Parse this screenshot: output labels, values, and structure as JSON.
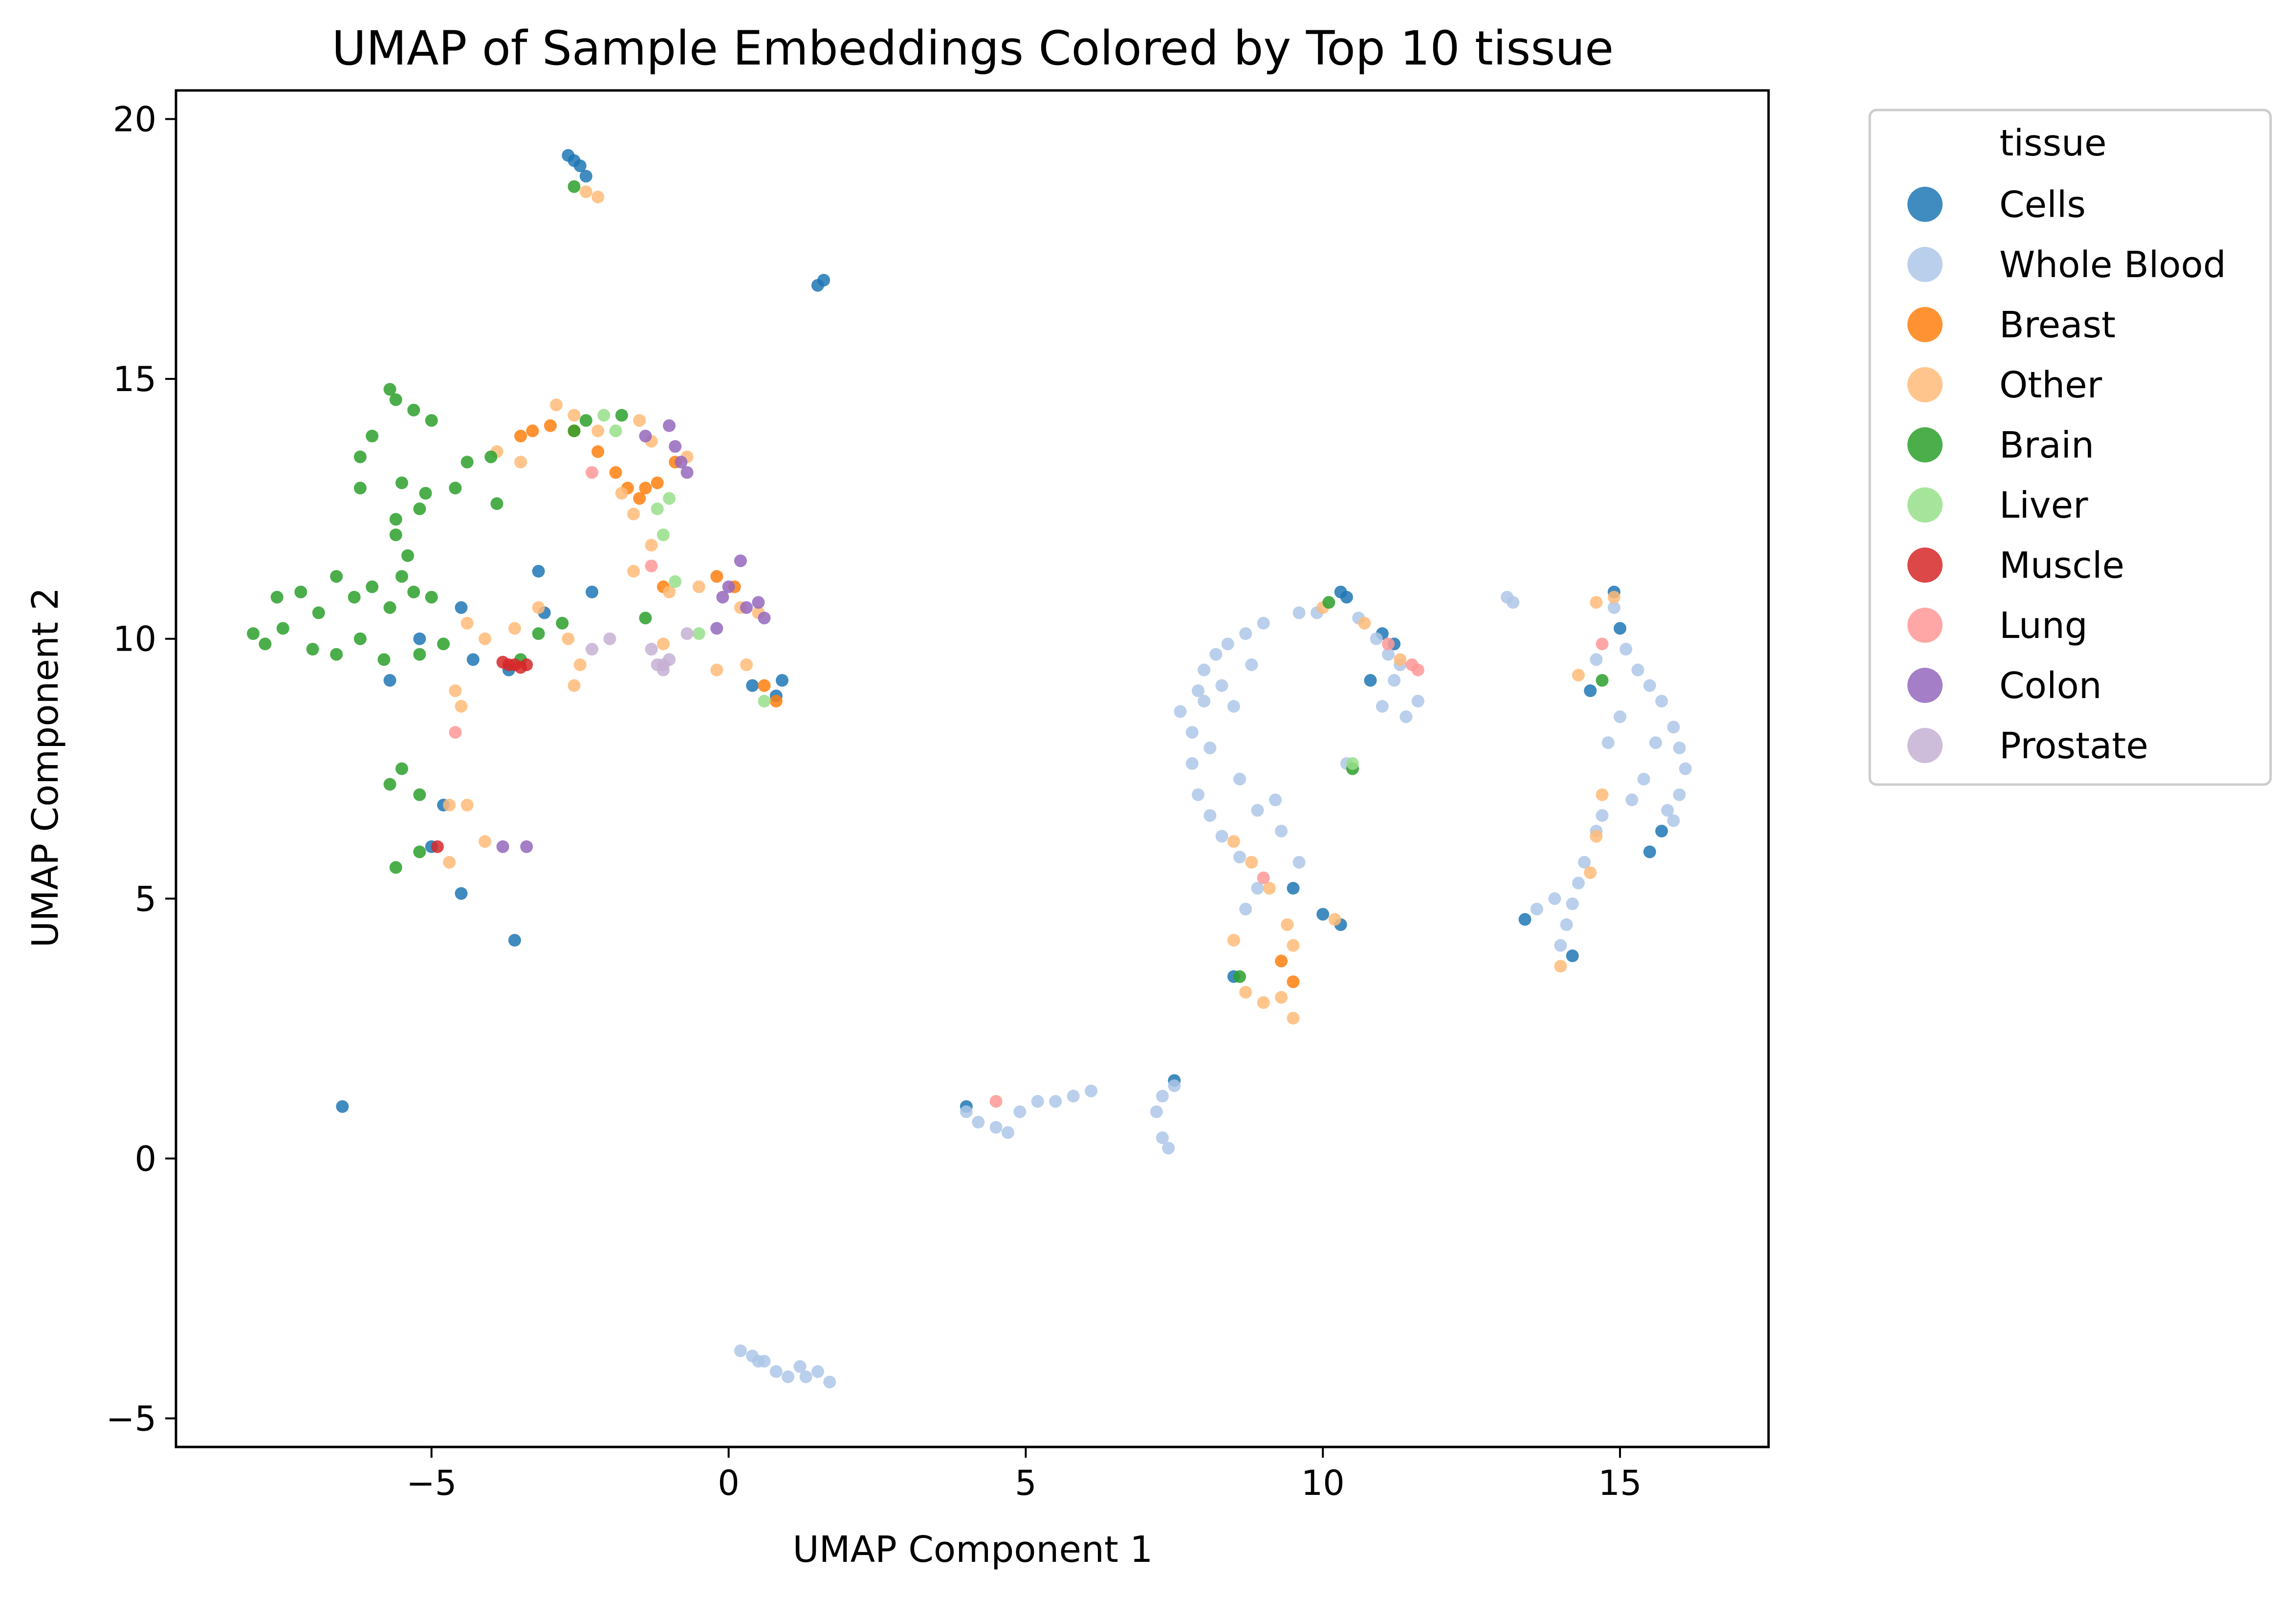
{
  "chart_data": {
    "type": "scatter",
    "title": "UMAP of Sample Embeddings Colored by Top 10 tissue",
    "xlabel": "UMAP Component 1",
    "ylabel": "UMAP Component 2",
    "xlim": [
      -9.3,
      17.5
    ],
    "ylim": [
      -5.55,
      20.55
    ],
    "xticks": [
      -5,
      0,
      5,
      10,
      15
    ],
    "yticks": [
      -5,
      0,
      5,
      10,
      15,
      20
    ],
    "xtick_labels": [
      "−5",
      "0",
      "5",
      "10",
      "15"
    ],
    "ytick_labels": [
      "−5",
      "0",
      "5",
      "10",
      "15",
      "20"
    ],
    "grid": false,
    "legend": {
      "title": "tissue",
      "placement": "outside upper right"
    },
    "series": [
      {
        "name": "Cells",
        "color": "#1f77b4",
        "points": [
          [
            -2.6,
            19.2
          ],
          [
            -2.5,
            19.1
          ],
          [
            -2.4,
            18.9
          ],
          [
            -2.7,
            19.3
          ],
          [
            1.5,
            16.8
          ],
          [
            1.6,
            16.9
          ],
          [
            -6.5,
            1.0
          ],
          [
            -3.6,
            4.2
          ],
          [
            -4.5,
            5.1
          ],
          [
            -5.0,
            6.0
          ],
          [
            -4.8,
            6.8
          ],
          [
            -3.2,
            11.3
          ],
          [
            -3.1,
            10.5
          ],
          [
            -2.3,
            10.9
          ],
          [
            0.9,
            9.2
          ],
          [
            0.8,
            8.9
          ],
          [
            0.4,
            9.1
          ],
          [
            -5.7,
            9.2
          ],
          [
            -5.2,
            10.0
          ],
          [
            -4.5,
            10.6
          ],
          [
            -3.7,
            9.4
          ],
          [
            10.3,
            10.9
          ],
          [
            10.4,
            10.8
          ],
          [
            11.0,
            10.1
          ],
          [
            11.2,
            9.9
          ],
          [
            10.8,
            9.2
          ],
          [
            9.5,
            5.2
          ],
          [
            10.0,
            4.7
          ],
          [
            10.3,
            4.5
          ],
          [
            8.5,
            3.5
          ],
          [
            7.5,
            1.5
          ],
          [
            13.4,
            4.6
          ],
          [
            14.2,
            3.9
          ],
          [
            14.9,
            10.9
          ],
          [
            15.0,
            10.2
          ],
          [
            14.5,
            9.0
          ],
          [
            15.7,
            6.3
          ],
          [
            15.5,
            5.9
          ],
          [
            4.0,
            1.0
          ],
          [
            -4.3,
            9.6
          ]
        ]
      },
      {
        "name": "Whole Blood",
        "color": "#aec7e8",
        "points": [
          [
            7.6,
            8.6
          ],
          [
            7.8,
            8.2
          ],
          [
            7.9,
            9.0
          ],
          [
            8.0,
            9.4
          ],
          [
            8.2,
            9.7
          ],
          [
            8.4,
            9.9
          ],
          [
            8.7,
            10.1
          ],
          [
            7.8,
            7.6
          ],
          [
            7.9,
            7.0
          ],
          [
            8.1,
            6.6
          ],
          [
            8.3,
            6.2
          ],
          [
            8.6,
            5.8
          ],
          [
            8.9,
            6.7
          ],
          [
            9.2,
            6.9
          ],
          [
            8.0,
            8.8
          ],
          [
            8.3,
            9.1
          ],
          [
            8.5,
            8.7
          ],
          [
            8.8,
            9.5
          ],
          [
            9.0,
            10.3
          ],
          [
            9.6,
            10.5
          ],
          [
            9.9,
            10.5
          ],
          [
            8.1,
            7.9
          ],
          [
            8.6,
            7.3
          ],
          [
            9.3,
            6.3
          ],
          [
            9.6,
            5.7
          ],
          [
            8.9,
            5.2
          ],
          [
            8.7,
            4.8
          ],
          [
            11.1,
            9.7
          ],
          [
            11.2,
            9.2
          ],
          [
            11.0,
            8.7
          ],
          [
            11.4,
            8.5
          ],
          [
            11.6,
            8.8
          ],
          [
            11.3,
            9.5
          ],
          [
            10.4,
            7.6
          ],
          [
            10.6,
            10.4
          ],
          [
            10.9,
            10.0
          ],
          [
            13.1,
            10.8
          ],
          [
            13.2,
            10.7
          ],
          [
            14.2,
            4.9
          ],
          [
            14.3,
            5.3
          ],
          [
            14.4,
            5.7
          ],
          [
            14.6,
            6.3
          ],
          [
            14.7,
            6.6
          ],
          [
            14.0,
            4.1
          ],
          [
            14.1,
            4.5
          ],
          [
            14.9,
            10.6
          ],
          [
            15.1,
            9.8
          ],
          [
            15.3,
            9.4
          ],
          [
            15.5,
            9.1
          ],
          [
            15.7,
            8.8
          ],
          [
            15.9,
            8.3
          ],
          [
            16.0,
            7.9
          ],
          [
            16.1,
            7.5
          ],
          [
            16.0,
            7.0
          ],
          [
            15.8,
            6.7
          ],
          [
            15.6,
            8.0
          ],
          [
            15.4,
            7.3
          ],
          [
            15.2,
            6.9
          ],
          [
            15.0,
            8.5
          ],
          [
            14.8,
            8.0
          ],
          [
            14.6,
            9.6
          ],
          [
            15.9,
            6.5
          ],
          [
            13.6,
            4.8
          ],
          [
            13.9,
            5.0
          ],
          [
            4.0,
            0.9
          ],
          [
            4.2,
            0.7
          ],
          [
            4.5,
            0.6
          ],
          [
            4.7,
            0.5
          ],
          [
            4.9,
            0.9
          ],
          [
            5.2,
            1.1
          ],
          [
            5.5,
            1.1
          ],
          [
            5.8,
            1.2
          ],
          [
            6.1,
            1.3
          ],
          [
            7.2,
            0.9
          ],
          [
            7.3,
            1.2
          ],
          [
            7.3,
            0.4
          ],
          [
            7.4,
            0.2
          ],
          [
            7.5,
            1.4
          ],
          [
            0.2,
            -3.7
          ],
          [
            0.4,
            -3.8
          ],
          [
            0.6,
            -3.9
          ],
          [
            0.8,
            -4.1
          ],
          [
            1.0,
            -4.2
          ],
          [
            1.3,
            -4.2
          ],
          [
            1.5,
            -4.1
          ],
          [
            1.7,
            -4.3
          ],
          [
            0.5,
            -3.9
          ],
          [
            1.2,
            -4.0
          ]
        ]
      },
      {
        "name": "Breast",
        "color": "#ff7f0e",
        "points": [
          [
            -3.3,
            14.0
          ],
          [
            -3.0,
            14.1
          ],
          [
            -2.6,
            14.0
          ],
          [
            -1.9,
            13.2
          ],
          [
            -1.7,
            12.9
          ],
          [
            -1.4,
            12.9
          ],
          [
            -0.9,
            13.4
          ],
          [
            -2.2,
            13.6
          ],
          [
            -1.5,
            12.7
          ],
          [
            -3.5,
            13.9
          ],
          [
            -0.2,
            11.2
          ],
          [
            0.1,
            11.0
          ],
          [
            -1.1,
            11.0
          ],
          [
            -1.2,
            13.0
          ],
          [
            0.6,
            9.1
          ],
          [
            0.8,
            8.8
          ],
          [
            9.5,
            3.4
          ],
          [
            9.3,
            3.8
          ]
        ]
      },
      {
        "name": "Other",
        "color": "#ffbb78",
        "points": [
          [
            -2.9,
            14.5
          ],
          [
            -2.6,
            14.3
          ],
          [
            -2.2,
            14.0
          ],
          [
            -1.5,
            14.2
          ],
          [
            -1.3,
            13.8
          ],
          [
            -0.7,
            13.5
          ],
          [
            -1.8,
            12.8
          ],
          [
            -1.6,
            12.4
          ],
          [
            -3.9,
            13.6
          ],
          [
            -3.5,
            13.4
          ],
          [
            -1.3,
            11.8
          ],
          [
            -1.6,
            11.3
          ],
          [
            -1.0,
            10.9
          ],
          [
            -0.5,
            11.0
          ],
          [
            0.2,
            10.6
          ],
          [
            0.3,
            9.5
          ],
          [
            -0.2,
            9.4
          ],
          [
            -2.7,
            10.0
          ],
          [
            -3.2,
            10.6
          ],
          [
            -3.6,
            10.2
          ],
          [
            -4.1,
            10.0
          ],
          [
            -4.4,
            10.3
          ],
          [
            -4.6,
            9.0
          ],
          [
            -4.5,
            8.7
          ],
          [
            -2.6,
            9.1
          ],
          [
            -2.5,
            9.5
          ],
          [
            -2.4,
            18.6
          ],
          [
            -2.2,
            18.5
          ],
          [
            -4.7,
            6.8
          ],
          [
            -4.4,
            6.8
          ],
          [
            -4.1,
            6.1
          ],
          [
            -4.7,
            5.7
          ],
          [
            0.5,
            10.5
          ],
          [
            -1.1,
            9.9
          ],
          [
            8.5,
            4.2
          ],
          [
            8.7,
            3.2
          ],
          [
            9.0,
            3.0
          ],
          [
            9.3,
            3.1
          ],
          [
            9.5,
            2.7
          ],
          [
            9.1,
            5.2
          ],
          [
            9.4,
            4.5
          ],
          [
            8.5,
            6.1
          ],
          [
            8.8,
            5.7
          ],
          [
            9.5,
            4.1
          ],
          [
            10.2,
            4.6
          ],
          [
            10.0,
            10.6
          ],
          [
            10.7,
            10.3
          ],
          [
            11.3,
            9.6
          ],
          [
            14.3,
            9.3
          ],
          [
            14.7,
            7.0
          ],
          [
            14.6,
            6.2
          ],
          [
            14.5,
            5.5
          ],
          [
            14.0,
            3.7
          ],
          [
            14.6,
            10.7
          ],
          [
            14.9,
            10.8
          ]
        ]
      },
      {
        "name": "Brain",
        "color": "#2ca02c",
        "points": [
          [
            -5.7,
            14.8
          ],
          [
            -5.6,
            14.6
          ],
          [
            -5.3,
            14.4
          ],
          [
            -5.0,
            14.2
          ],
          [
            -6.2,
            13.5
          ],
          [
            -6.0,
            13.9
          ],
          [
            -5.5,
            13.0
          ],
          [
            -5.1,
            12.8
          ],
          [
            -4.4,
            13.4
          ],
          [
            -4.0,
            13.5
          ],
          [
            -6.2,
            12.9
          ],
          [
            -5.6,
            12.3
          ],
          [
            -5.2,
            12.5
          ],
          [
            -4.6,
            12.9
          ],
          [
            -3.9,
            12.6
          ],
          [
            -2.6,
            14.0
          ],
          [
            -2.4,
            14.2
          ],
          [
            -1.8,
            14.3
          ],
          [
            -8.0,
            10.1
          ],
          [
            -7.8,
            9.9
          ],
          [
            -7.5,
            10.2
          ],
          [
            -7.6,
            10.8
          ],
          [
            -7.2,
            10.9
          ],
          [
            -6.9,
            10.5
          ],
          [
            -6.6,
            11.2
          ],
          [
            -6.3,
            10.8
          ],
          [
            -6.0,
            11.0
          ],
          [
            -5.7,
            10.6
          ],
          [
            -5.5,
            11.2
          ],
          [
            -5.3,
            10.9
          ],
          [
            -5.0,
            10.8
          ],
          [
            -5.6,
            12.0
          ],
          [
            -5.4,
            11.6
          ],
          [
            -7.0,
            9.8
          ],
          [
            -6.6,
            9.7
          ],
          [
            -6.2,
            10.0
          ],
          [
            -5.8,
            9.6
          ],
          [
            -5.2,
            9.7
          ],
          [
            -4.8,
            9.9
          ],
          [
            -3.5,
            9.6
          ],
          [
            -3.2,
            10.1
          ],
          [
            -2.8,
            10.3
          ],
          [
            -5.7,
            7.2
          ],
          [
            -5.5,
            7.5
          ],
          [
            -5.2,
            7.0
          ],
          [
            -5.6,
            5.6
          ],
          [
            -5.2,
            5.9
          ],
          [
            -2.6,
            18.7
          ],
          [
            10.1,
            10.7
          ],
          [
            10.5,
            7.5
          ],
          [
            8.6,
            3.5
          ],
          [
            14.7,
            9.2
          ],
          [
            -1.4,
            10.4
          ]
        ]
      },
      {
        "name": "Liver",
        "color": "#98df8a",
        "points": [
          [
            -2.1,
            14.3
          ],
          [
            -1.9,
            14.0
          ],
          [
            -1.2,
            12.5
          ],
          [
            -1.1,
            12.0
          ],
          [
            -1.0,
            12.7
          ],
          [
            -0.9,
            11.1
          ],
          [
            -0.5,
            10.1
          ],
          [
            0.6,
            8.8
          ],
          [
            10.5,
            7.6
          ]
        ]
      },
      {
        "name": "Muscle",
        "color": "#d62728",
        "points": [
          [
            -3.7,
            9.5
          ],
          [
            -3.6,
            9.5
          ],
          [
            -3.5,
            9.45
          ],
          [
            -3.8,
            9.55
          ],
          [
            -3.4,
            9.5
          ],
          [
            -4.9,
            6.0
          ]
        ]
      },
      {
        "name": "Lung",
        "color": "#ff9896",
        "points": [
          [
            -4.6,
            8.2
          ],
          [
            -2.3,
            13.2
          ],
          [
            -1.3,
            11.4
          ],
          [
            4.5,
            1.1
          ],
          [
            11.1,
            9.9
          ],
          [
            11.5,
            9.5
          ],
          [
            11.6,
            9.4
          ],
          [
            9.0,
            5.4
          ],
          [
            14.7,
            9.9
          ]
        ]
      },
      {
        "name": "Colon",
        "color": "#9467bd",
        "points": [
          [
            -1.0,
            14.1
          ],
          [
            -0.9,
            13.7
          ],
          [
            -0.8,
            13.4
          ],
          [
            -0.7,
            13.2
          ],
          [
            0.0,
            11.0
          ],
          [
            0.2,
            11.5
          ],
          [
            0.3,
            10.6
          ],
          [
            0.5,
            10.7
          ],
          [
            0.6,
            10.4
          ],
          [
            -0.2,
            10.2
          ],
          [
            -3.8,
            6.0
          ],
          [
            -3.4,
            6.0
          ],
          [
            -1.4,
            13.9
          ],
          [
            -0.1,
            10.8
          ]
        ]
      },
      {
        "name": "Prostate",
        "color": "#c5b0d5",
        "points": [
          [
            -1.2,
            9.5
          ],
          [
            -1.1,
            9.4
          ],
          [
            -1.0,
            9.6
          ],
          [
            -1.3,
            9.8
          ],
          [
            -2.3,
            9.8
          ],
          [
            -2.0,
            10.0
          ],
          [
            -0.7,
            10.1
          ],
          [
            -1.1,
            9.5
          ]
        ]
      }
    ]
  }
}
